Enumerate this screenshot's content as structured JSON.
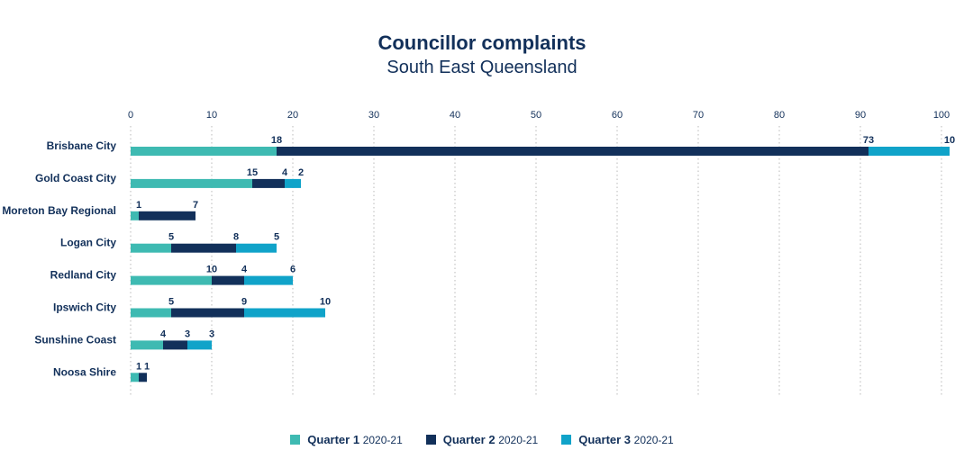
{
  "chart_data": {
    "type": "bar",
    "orientation": "horizontal",
    "stacked": true,
    "title": "Councillor complaints",
    "subtitle": "South East Queensland",
    "categories": [
      "Brisbane City",
      "Gold Coast City",
      "Moreton Bay Regional",
      "Logan City",
      "Redland City",
      "Ipswich City",
      "Sunshine Coast",
      "Noosa Shire"
    ],
    "series": [
      {
        "name": "Quarter 1",
        "period": "2020-21",
        "color": "#3ebab2",
        "values": [
          18,
          15,
          1,
          5,
          10,
          5,
          4,
          1
        ]
      },
      {
        "name": "Quarter 2",
        "period": "2020-21",
        "color": "#12305a",
        "values": [
          73,
          4,
          7,
          8,
          4,
          9,
          3,
          1
        ]
      },
      {
        "name": "Quarter 3",
        "period": "2020-21",
        "color": "#10a3c9",
        "values": [
          10,
          2,
          null,
          5,
          6,
          10,
          3,
          null
        ]
      }
    ],
    "xlim": [
      0,
      100
    ],
    "xticks": [
      0,
      10,
      20,
      30,
      40,
      50,
      60,
      70,
      80,
      90,
      100
    ],
    "axis_position": "top",
    "grid": true,
    "legend_position": "bottom"
  }
}
